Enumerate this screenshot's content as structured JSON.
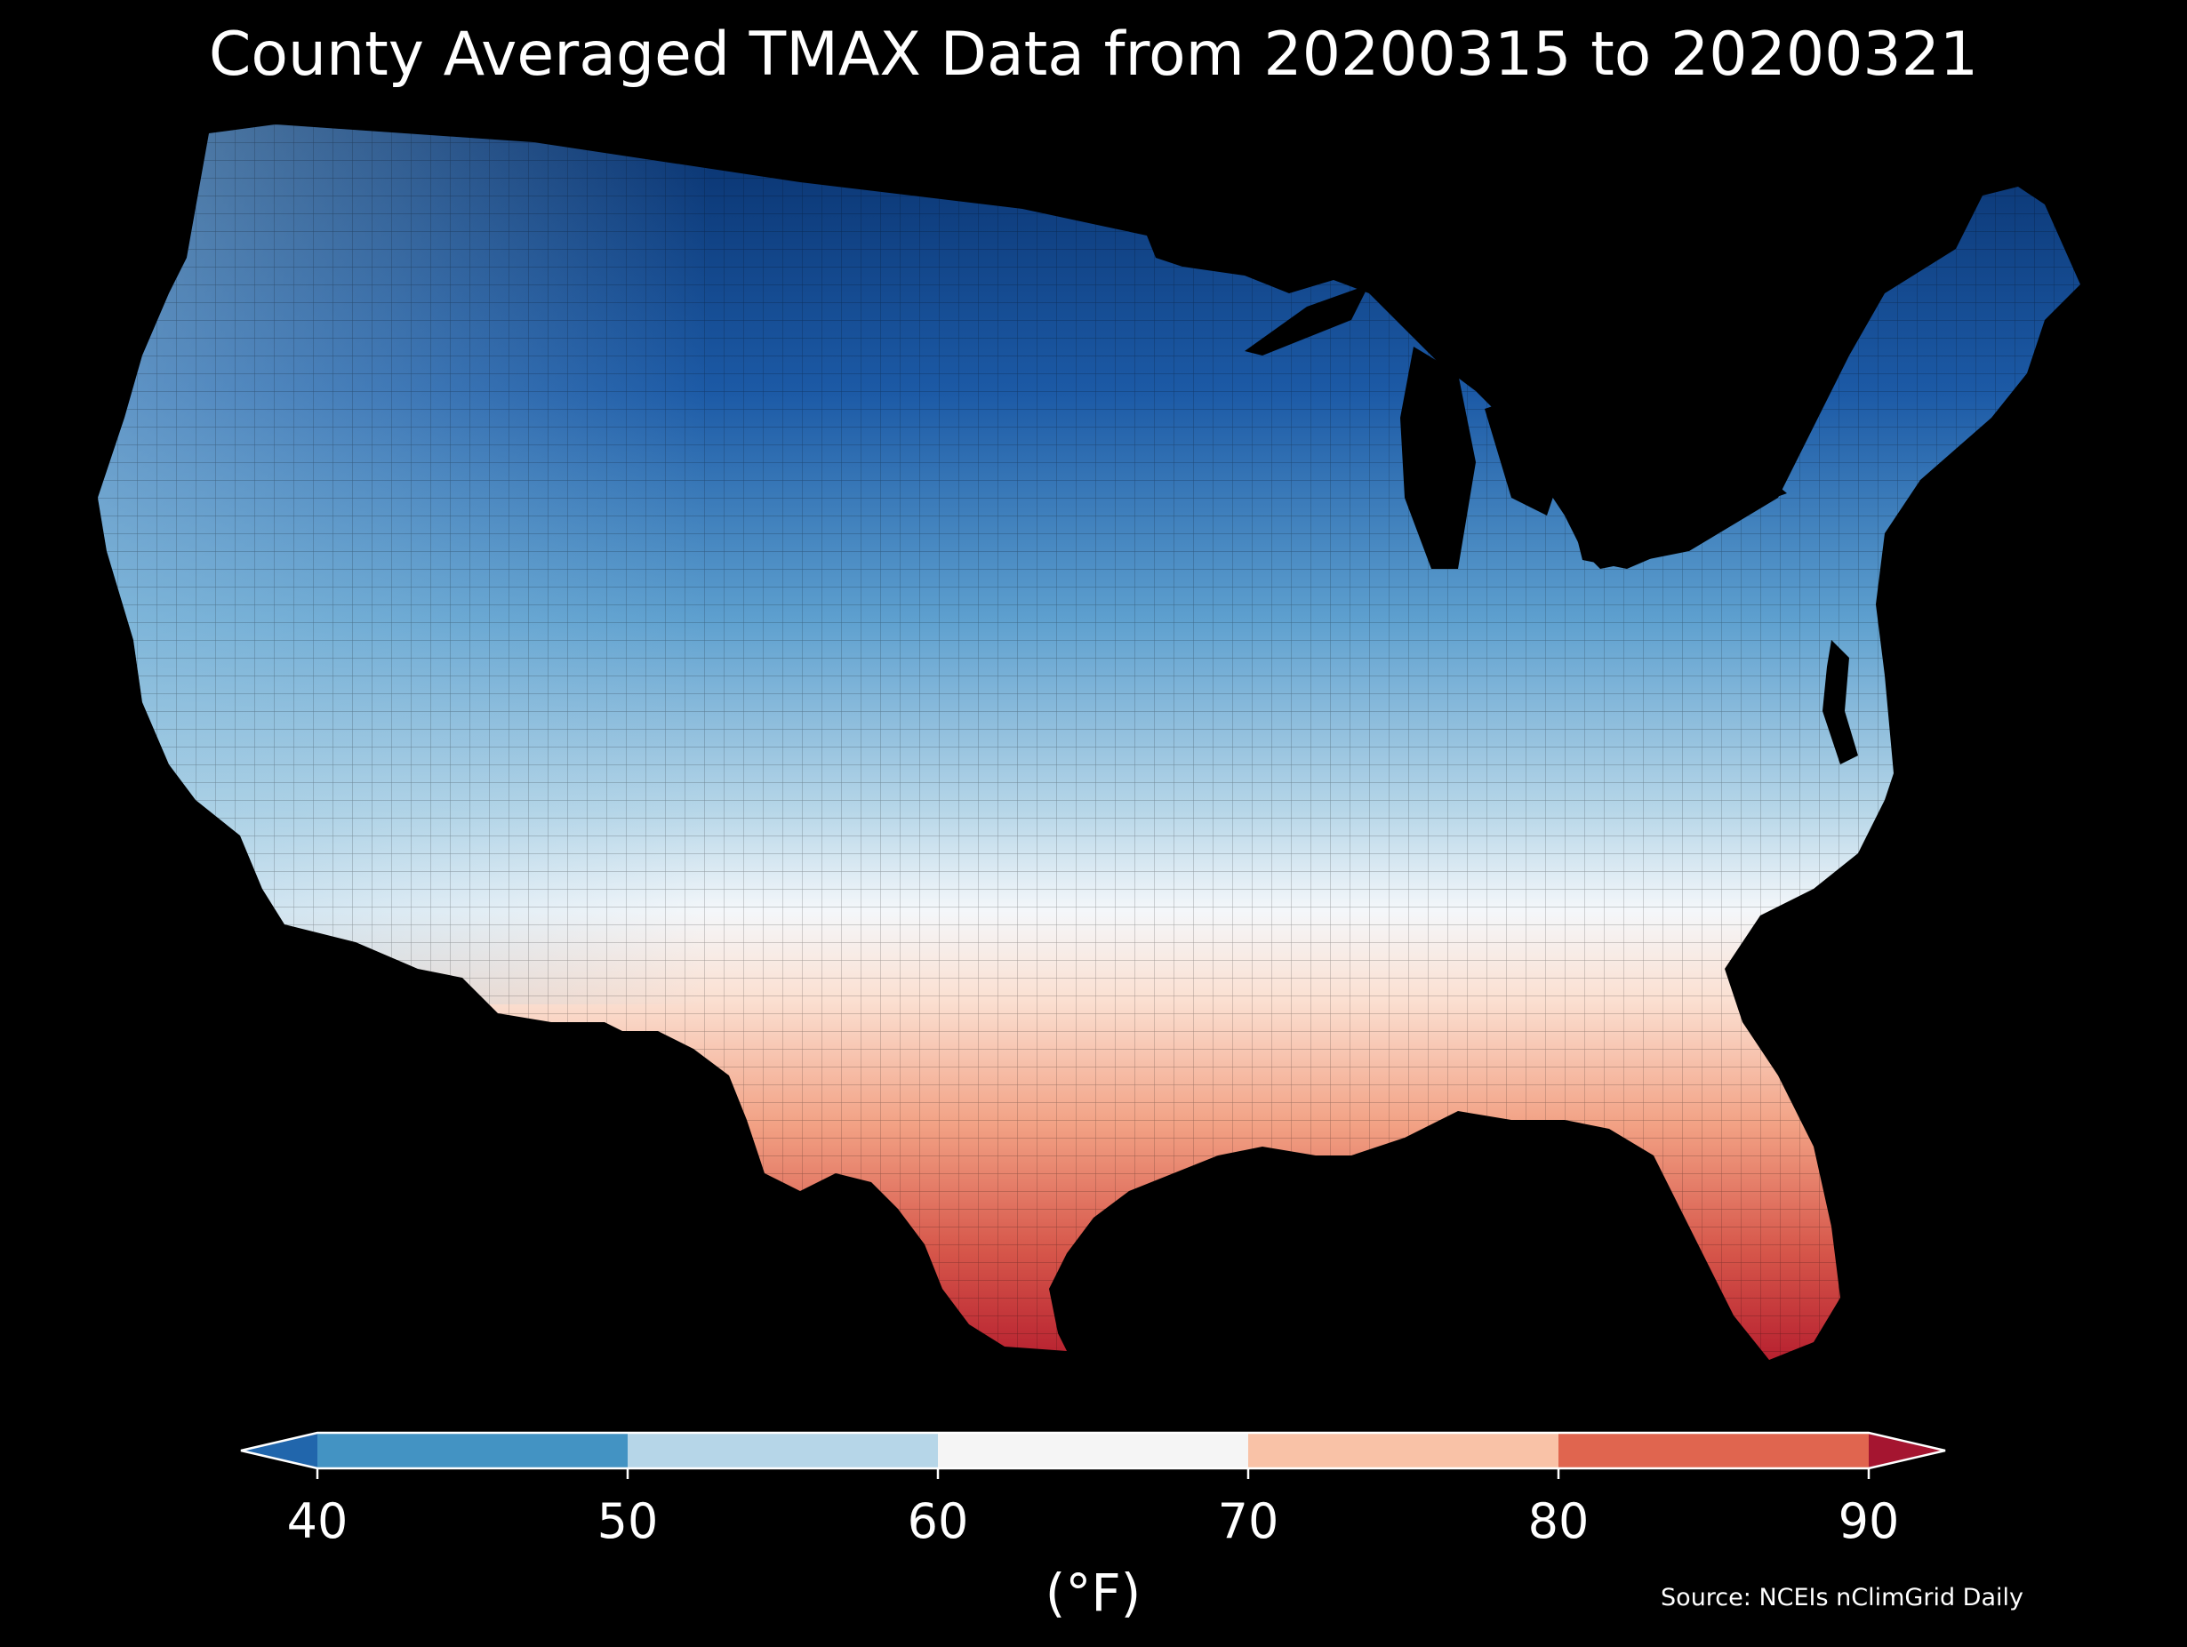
{
  "title": "County Averaged TMAX Data from 20200315 to 20200321",
  "source": "Source: NCEIs nClimGrid Daily",
  "colorbar": {
    "unit_label": "(°F)",
    "ticks": [
      "40",
      "50",
      "60",
      "70",
      "80",
      "90"
    ],
    "bins": [
      {
        "range": [
          40,
          50
        ],
        "color": "#4393c3"
      },
      {
        "range": [
          50,
          60
        ],
        "color": "#b6d6e8"
      },
      {
        "range": [
          60,
          70
        ],
        "color": "#f5f5f5"
      },
      {
        "range": [
          70,
          80
        ],
        "color": "#f9c2a7"
      },
      {
        "range": [
          80,
          90
        ],
        "color": "#e0654f"
      }
    ],
    "under_color": "#2166ac",
    "over_color": "#a51530"
  },
  "map": {
    "region": "Contiguous United States",
    "variable": "TMAX",
    "colors": {
      "background": "#000000",
      "county_border": "#000000"
    }
  }
}
